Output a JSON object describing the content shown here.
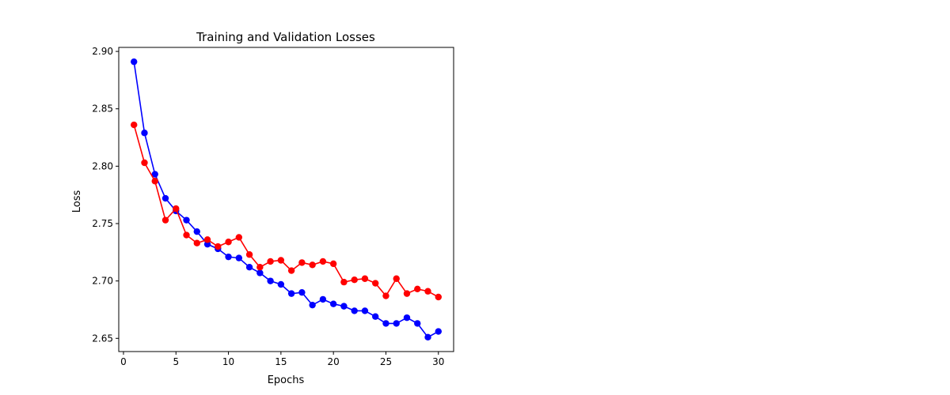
{
  "chart_data": {
    "type": "line",
    "title": "Training and Validation Losses",
    "xlabel": "Epochs",
    "ylabel": "Loss",
    "xlim": [
      -0.45,
      31.45
    ],
    "ylim": [
      2.6385,
      2.9035
    ],
    "xticks": [
      0,
      5,
      10,
      15,
      20,
      25,
      30
    ],
    "yticks": [
      2.65,
      2.7,
      2.75,
      2.8,
      2.85,
      2.9
    ],
    "ytick_labels": [
      "2.65",
      "2.70",
      "2.75",
      "2.80",
      "2.85",
      "2.90"
    ],
    "grid": false,
    "x": [
      1,
      2,
      3,
      4,
      5,
      6,
      7,
      8,
      9,
      10,
      11,
      12,
      13,
      14,
      15,
      16,
      17,
      18,
      19,
      20,
      21,
      22,
      23,
      24,
      25,
      26,
      27,
      28,
      29,
      30
    ],
    "series": [
      {
        "color": "#0000ff",
        "marker": "circle",
        "values": [
          2.891,
          2.829,
          2.793,
          2.772,
          2.761,
          2.753,
          2.743,
          2.732,
          2.728,
          2.721,
          2.72,
          2.712,
          2.707,
          2.7,
          2.697,
          2.689,
          2.69,
          2.679,
          2.684,
          2.68,
          2.678,
          2.674,
          2.674,
          2.669,
          2.663,
          2.663,
          2.668,
          2.663,
          2.651,
          2.656
        ]
      },
      {
        "color": "#ff0000",
        "marker": "circle",
        "values": [
          2.836,
          2.803,
          2.787,
          2.753,
          2.763,
          2.74,
          2.733,
          2.736,
          2.73,
          2.734,
          2.738,
          2.723,
          2.712,
          2.717,
          2.718,
          2.709,
          2.716,
          2.714,
          2.717,
          2.715,
          2.699,
          2.701,
          2.702,
          2.698,
          2.687,
          2.702,
          2.689,
          2.693,
          2.691,
          2.686
        ]
      }
    ]
  }
}
